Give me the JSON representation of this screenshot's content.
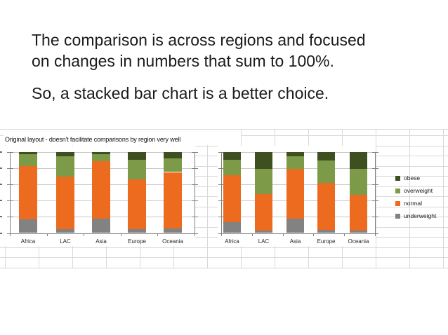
{
  "slide_text": {
    "paragraph1_line1": "The comparison is across regions and focused",
    "paragraph1_line2": "on changes in numbers that sum to 100%.",
    "paragraph2": "So, a stacked bar chart is a better choice."
  },
  "worksheet": {
    "title": "Original layout - doesn't facilitate comparisons by region very well"
  },
  "legend": {
    "position": "right-of-second-chart",
    "items": [
      {
        "label": "obese",
        "color": "#3E501F"
      },
      {
        "label": "overweight",
        "color": "#7C9A48"
      },
      {
        "label": "normal",
        "color": "#EC6B1E"
      },
      {
        "label": "underweight",
        "color": "#828282"
      }
    ]
  },
  "chart_data": [
    {
      "type": "bar",
      "stacked": true,
      "stacked_to_percent": 100,
      "title": "",
      "categories": [
        "Africa",
        "LAC",
        "Asia",
        "Europe",
        "Oceania"
      ],
      "series": [
        {
          "name": "underweight",
          "color": "#828282",
          "values": [
            17,
            5,
            18,
            5,
            6
          ]
        },
        {
          "name": "normal",
          "color": "#EC6B1E",
          "values": [
            65,
            64,
            70,
            61,
            69
          ]
        },
        {
          "name": "overweight",
          "color": "#7C9A48",
          "values": [
            15,
            25,
            9,
            24,
            17
          ]
        },
        {
          "name": "obese",
          "color": "#3E501F",
          "values": [
            3,
            6,
            3,
            10,
            8
          ]
        }
      ],
      "xlabel": "",
      "ylabel": "",
      "ylim": [
        0,
        100
      ],
      "ytick_interval": 20,
      "y_tick_labels_visible": false,
      "grid": true,
      "legend_position": "none"
    },
    {
      "type": "bar",
      "stacked": true,
      "stacked_to_percent": 100,
      "title": "",
      "categories": [
        "Africa",
        "LAC",
        "Asia",
        "Europe",
        "Oceania"
      ],
      "series": [
        {
          "name": "underweight",
          "color": "#828282",
          "values": [
            13,
            3,
            18,
            4,
            3
          ]
        },
        {
          "name": "normal",
          "color": "#EC6B1E",
          "values": [
            58,
            45,
            61,
            58,
            44
          ]
        },
        {
          "name": "overweight",
          "color": "#7C9A48",
          "values": [
            19,
            31,
            15,
            27,
            32
          ]
        },
        {
          "name": "obese",
          "color": "#3E501F",
          "values": [
            10,
            21,
            6,
            11,
            21
          ]
        }
      ],
      "xlabel": "",
      "ylabel": "",
      "ylim": [
        0,
        100
      ],
      "ytick_interval": 20,
      "y_tick_labels_visible": false,
      "grid": true,
      "legend_position": "right"
    }
  ]
}
